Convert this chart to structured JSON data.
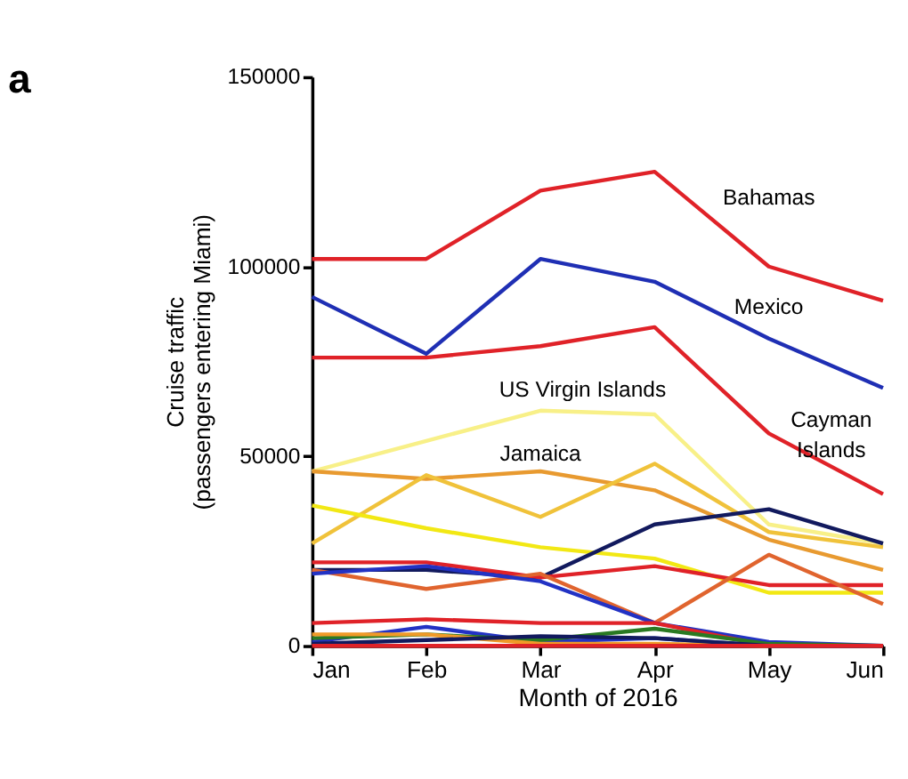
{
  "chart_data": {
    "type": "line",
    "title": "a",
    "xlabel": "Month of 2016",
    "ylabel": "Cruise traffic (passengers entering Miami)",
    "categories": [
      "Jan",
      "Feb",
      "Mar",
      "Apr",
      "May",
      "Jun"
    ],
    "ylim": [
      0,
      150000
    ],
    "yticks": [
      0,
      50000,
      100000,
      150000
    ],
    "grid": false,
    "marker": "none",
    "line_style": "solid",
    "series": [
      {
        "name": "Bahamas",
        "color": "#e02228",
        "values": [
          102000,
          102000,
          120000,
          125000,
          100000,
          91000
        ]
      },
      {
        "name": "Mexico",
        "color": "#1f2fb4",
        "values": [
          92000,
          77000,
          102000,
          96000,
          81000,
          68000
        ]
      },
      {
        "name": "Cayman Islands",
        "color": "#e02228",
        "values": [
          76000,
          76000,
          79000,
          84000,
          56000,
          40000
        ]
      },
      {
        "name": "US Virgin Islands",
        "color": "#f8f088",
        "values": [
          46000,
          54000,
          62000,
          61000,
          32000,
          27000
        ]
      },
      {
        "name": "Jamaica",
        "color": "#e89a30",
        "values": [
          46000,
          44000,
          46000,
          41000,
          28000,
          20000
        ]
      },
      {
        "color": "#f0c23a",
        "values": [
          27000,
          45000,
          34000,
          48000,
          30000,
          26000
        ]
      },
      {
        "color": "#f2e814",
        "values": [
          37000,
          31000,
          26000,
          23000,
          14000,
          14000
        ]
      },
      {
        "color": "#121a5e",
        "values": [
          20000,
          20000,
          18000,
          32000,
          36000,
          27000
        ]
      },
      {
        "color": "#e02228",
        "values": [
          22000,
          22000,
          18000,
          21000,
          16000,
          16000
        ]
      },
      {
        "color": "#e0642e",
        "values": [
          20000,
          15000,
          19000,
          6000,
          24000,
          11000
        ]
      },
      {
        "color": "#2232c4",
        "values": [
          19000,
          21000,
          17000,
          6000,
          1000,
          0
        ]
      },
      {
        "color": "#e02228",
        "values": [
          6000,
          7000,
          6000,
          6000,
          0,
          0
        ]
      },
      {
        "color": "#2232c4",
        "values": [
          1000,
          5000,
          1000,
          2000,
          0,
          0
        ]
      },
      {
        "color": "#2a7a22",
        "values": [
          2000,
          3000,
          1500,
          4500,
          500,
          0
        ]
      },
      {
        "color": "#f09a28",
        "values": [
          3000,
          3000,
          500,
          500,
          0,
          0
        ]
      },
      {
        "color": "#121a5e",
        "values": [
          500,
          1500,
          2500,
          2000,
          0,
          0
        ]
      },
      {
        "color": "#e02228",
        "values": [
          0,
          0,
          0,
          0,
          0,
          0
        ]
      }
    ]
  }
}
